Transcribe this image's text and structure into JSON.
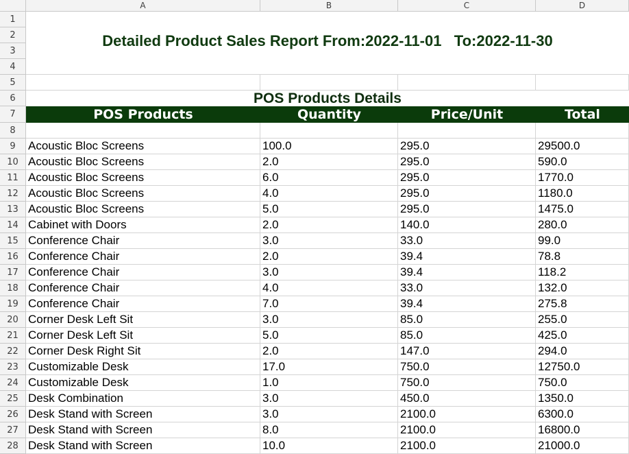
{
  "columns": [
    "A",
    "B",
    "C",
    "D"
  ],
  "row_numbers": [
    "1",
    "2",
    "3",
    "4",
    "5",
    "6",
    "7",
    "8",
    "9",
    "10",
    "11",
    "12",
    "13",
    "14",
    "15",
    "16",
    "17",
    "18",
    "19",
    "20",
    "21",
    "22",
    "23",
    "24",
    "25",
    "26",
    "27",
    "28"
  ],
  "report": {
    "title": "Detailed Product Sales Report From:2022-11-01   To:2022-11-30",
    "section_title": "POS Products Details",
    "headers": [
      "POS Products",
      "Quantity",
      "Price/Unit",
      "Total"
    ],
    "header_bg": "#0b3b0b"
  },
  "rows": [
    [
      "Acoustic Bloc Screens",
      "100.0",
      "295.0",
      "29500.0"
    ],
    [
      "Acoustic Bloc Screens",
      "2.0",
      "295.0",
      "590.0"
    ],
    [
      "Acoustic Bloc Screens",
      "6.0",
      "295.0",
      "1770.0"
    ],
    [
      "Acoustic Bloc Screens",
      "4.0",
      "295.0",
      "1180.0"
    ],
    [
      "Acoustic Bloc Screens",
      "5.0",
      "295.0",
      "1475.0"
    ],
    [
      "Cabinet with Doors",
      "2.0",
      "140.0",
      "280.0"
    ],
    [
      "Conference Chair",
      "3.0",
      "33.0",
      "99.0"
    ],
    [
      "Conference Chair",
      "2.0",
      "39.4",
      "78.8"
    ],
    [
      "Conference Chair",
      "3.0",
      "39.4",
      "118.2"
    ],
    [
      "Conference Chair",
      "4.0",
      "33.0",
      "132.0"
    ],
    [
      "Conference Chair",
      "7.0",
      "39.4",
      "275.8"
    ],
    [
      "Corner Desk Left Sit",
      "3.0",
      "85.0",
      "255.0"
    ],
    [
      "Corner Desk Left Sit",
      "5.0",
      "85.0",
      "425.0"
    ],
    [
      "Corner Desk Right Sit",
      "2.0",
      "147.0",
      "294.0"
    ],
    [
      "Customizable Desk",
      "17.0",
      "750.0",
      "12750.0"
    ],
    [
      "Customizable Desk",
      "1.0",
      "750.0",
      "750.0"
    ],
    [
      "Desk Combination",
      "3.0",
      "450.0",
      "1350.0"
    ],
    [
      "Desk Stand with Screen",
      "3.0",
      "2100.0",
      "6300.0"
    ],
    [
      "Desk Stand with Screen",
      "8.0",
      "2100.0",
      "16800.0"
    ],
    [
      "Desk Stand with Screen",
      "10.0",
      "2100.0",
      "21000.0"
    ]
  ]
}
